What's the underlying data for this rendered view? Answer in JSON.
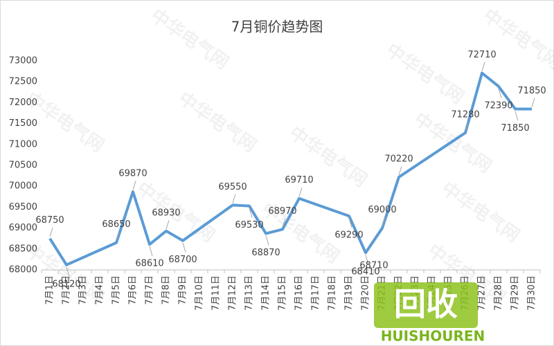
{
  "chart_data": {
    "type": "line",
    "title": "7月铜价趋势图",
    "categories": [
      "7月1日",
      "7月2日",
      "7月3日",
      "7月4日",
      "7月5日",
      "7月6日",
      "7月7日",
      "7月8日",
      "7月9日",
      "7月10日",
      "7月11日",
      "7月12日",
      "7月13日",
      "7月14日",
      "7月15日",
      "7月16日",
      "7月17日",
      "7月18日",
      "7月19日",
      "7月20日",
      "7月21日",
      "7月22日",
      "7月23日",
      "7月24日",
      "7月25日",
      "7月26日",
      "7月27日",
      "7月28日",
      "7月29日",
      "7月30日"
    ],
    "values": [
      68750,
      68120,
      null,
      null,
      68650,
      69870,
      68610,
      68930,
      68700,
      null,
      null,
      69550,
      69530,
      68870,
      68970,
      69710,
      null,
      null,
      69290,
      68410,
      69000,
      70220,
      null,
      null,
      null,
      71280,
      72710,
      72390,
      71850,
      71850
    ],
    "connect_gaps": true,
    "color": "#5b9bd5",
    "ylim": [
      68000,
      73000
    ],
    "yticks": [
      68000,
      68500,
      69000,
      69500,
      70000,
      70500,
      71000,
      71500,
      72000,
      72500,
      73000
    ],
    "annotations": [
      "68710"
    ],
    "watermark": "中华电气网",
    "logo_mark": "回收",
    "logo_text": "HUISHOUREN"
  }
}
